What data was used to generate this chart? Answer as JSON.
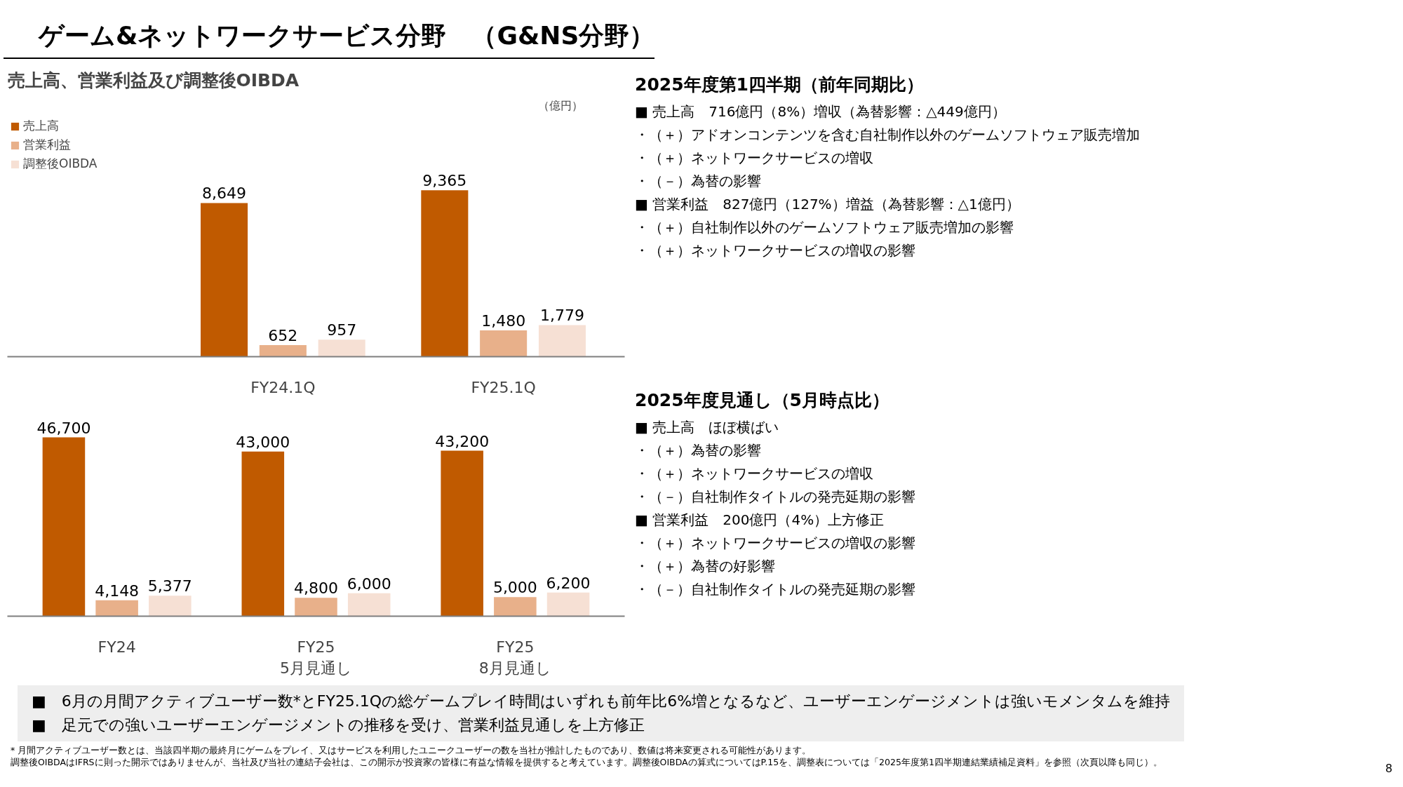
{
  "chart_data": [
    {
      "type": "bar",
      "title": "ゲーム&ネットワークサービス分野　（G&NS分野）",
      "subtitle": "売上高、営業利益及び調整後OIBDA",
      "ylabel": "（億円）",
      "categories": [
        "FY24.1Q",
        "FY25.1Q"
      ],
      "series": [
        {
          "name": "売上高",
          "color": "#c05a00",
          "values": [
            8649,
            9365
          ],
          "value_labels": [
            "8,649",
            "9,365"
          ]
        },
        {
          "name": "営業利益",
          "color": "#e8b08a",
          "values": [
            652,
            1480
          ],
          "value_labels": [
            "652",
            "1,480"
          ]
        },
        {
          "name": "調整後OIBDA",
          "color": "#f6e0d4",
          "values": [
            957,
            1779
          ],
          "value_labels": [
            "957",
            "1,779"
          ]
        }
      ],
      "legend": "top left",
      "tick_labels": "x",
      "annotations": [
        "2025年度第1四半期（前年同期比）",
        "■ 売上高　716億円（8%）増収（為替影響：△449億円）",
        "・（＋）アドオンコンテンツを含む自社制作以外のゲームソフトウェア販売増加",
        "・（＋）ネットワークサービスの増収",
        "・（－）為替の影響",
        "■ 営業利益　827億円（127%）増益（為替影響：△1億円）",
        "・（＋）自社制作以外のゲームソフトウェア販売増加の影響",
        "・（＋）ネットワークサービスの増収の影響"
      ]
    },
    {
      "type": "bar",
      "categories": [
        "FY24",
        "FY25\n5月見通し",
        "FY25\n8月見通し"
      ],
      "series": [
        {
          "color": "#c05a00",
          "values": [
            46700,
            43000,
            43200
          ],
          "value_labels": [
            "46,700",
            "43,000",
            "43,200"
          ]
        },
        {
          "color": "#e8b08a",
          "values": [
            4148,
            4800,
            5000
          ],
          "value_labels": [
            "4,148",
            "4,800",
            "5,000"
          ]
        },
        {
          "color": "#f6e0d4",
          "values": [
            5377,
            6000,
            6200
          ],
          "value_labels": [
            "5,377",
            "6,000",
            "6,200"
          ]
        }
      ],
      "tick_labels": "x",
      "annotations": [
        "2025年度見通し（5月時点比）",
        "■ 売上高　ほぼ横ばい",
        "・（＋）為替の影響",
        "・（＋）ネットワークサービスの増収",
        "・（－）自社制作タイトルの発売延期の影響",
        "■ 営業利益　200億円（4%）上方修正",
        "・（＋）ネットワークサービスの増収の影響",
        "・（＋）為替の好影響",
        "・（－）自社制作タイトルの発売延期の影響"
      ]
    },
    {
      "type": "other",
      "annotations": [
        "■　6月の月間アクティブユーザー数*とFY25.1Qの総ゲームプレイ時間はいずれも前年比6%増となるなど、ユーザーエンゲージメントは強いモメンタムを維持",
        "■　足元での強いユーザーエンゲージメントの推移を受け、営業利益見通しを上方修正",
        "* 月間アクティブユーザー数とは、当該四半期の最終月にゲームをプレイ、又はサービスを利用したユニークユーザーの数を当社が推計したものであり、数値は将来変更される可能性があります。",
        "調整後OIBDAはIFRSに則った開示ではありませんが、当社及び当社の連結子会社は、この開示が投資家の皆様に有益な情報を提供すると考えています。調整後OIBDAの算式についてはP.15を、調整表については「2025年度第1四半期連結業績補足資料」を参照（次頁以降も同じ）。",
        "8"
      ]
    }
  ]
}
